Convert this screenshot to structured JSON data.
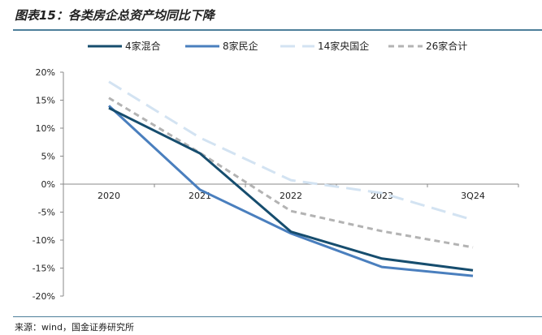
{
  "title": "图表15：各类房企总资产均同比下降",
  "source": "来源：wind，国金证券研究所",
  "chart_data": {
    "type": "line",
    "categories": [
      "2020",
      "2021",
      "2022",
      "2023",
      "3Q24"
    ],
    "ylim": [
      -20,
      20
    ],
    "yticks": [
      20,
      15,
      10,
      5,
      0,
      -5,
      -10,
      -15,
      -20
    ],
    "ytick_labels": [
      "20%",
      "15%",
      "10%",
      "5%",
      "0%",
      "-5%",
      "-10%",
      "-15%",
      "-20%"
    ],
    "grid": false,
    "legend": "top",
    "series": [
      {
        "name": "4家混合",
        "values": [
          13.6,
          5.5,
          -8.5,
          -13.3,
          -15.4
        ],
        "color": "#164d6e",
        "dash": "solid"
      },
      {
        "name": "8家民企",
        "values": [
          14.0,
          -1.0,
          -8.8,
          -14.8,
          -16.4
        ],
        "color": "#4a7fbe",
        "dash": "solid"
      },
      {
        "name": "14家央国企",
        "values": [
          18.3,
          8.3,
          0.7,
          -1.6,
          -6.4
        ],
        "color": "#d3e3f2",
        "dash": "long"
      },
      {
        "name": "26家合计",
        "values": [
          15.4,
          5.6,
          -4.8,
          -8.4,
          -11.3
        ],
        "color": "#b3b3b3",
        "dash": "short"
      }
    ]
  }
}
